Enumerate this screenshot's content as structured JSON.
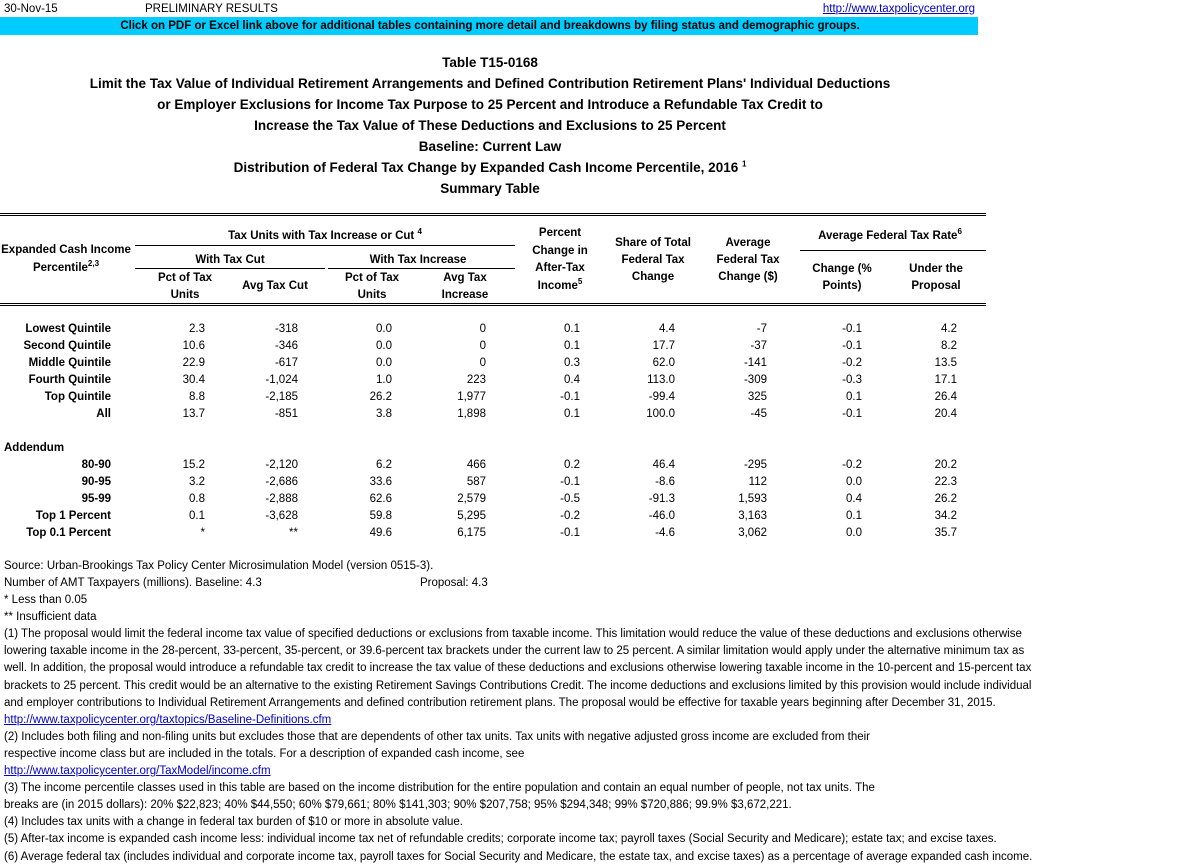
{
  "header": {
    "date": "30-Nov-15",
    "status": "PRELIMINARY RESULTS",
    "url": "http://www.taxpolicycenter.org",
    "banner": "Click on PDF or Excel link above for additional tables containing more detail and breakdowns by filing status and demographic groups."
  },
  "title_lines": [
    {
      "text": "Table T15-0168"
    },
    {
      "text": "Limit the Tax Value of Individual Retirement Arrangements and Defined Contribution Retirement Plans' Individual Deductions"
    },
    {
      "text": "or Employer Exclusions for Income Tax Purpose to 25 Percent and Introduce a Refundable Tax Credit to"
    },
    {
      "text": "Increase the Tax Value of These Deductions and Exclusions to 25 Percent"
    },
    {
      "text": "Baseline: Current Law"
    },
    {
      "text": "Distribution of Federal Tax Change by Expanded Cash Income Percentile, 2016 ",
      "sup": "1"
    },
    {
      "text": "Summary Table"
    }
  ],
  "table": {
    "stub": [
      {
        "text": "Expanded Cash Income"
      },
      {
        "text": "Percentile",
        "sup": "2,3"
      }
    ],
    "group": {
      "text": "Tax Units with Tax Increase or Cut ",
      "sup": "4"
    },
    "subgroups": [
      "With Tax Cut",
      "With Tax Increase"
    ],
    "rate_group": {
      "text": "Average Federal Tax Rate",
      "sup": "6"
    },
    "columns": [
      [
        {
          "text": "Pct of Tax"
        },
        {
          "text": "Units"
        }
      ],
      [
        {
          "text": "Avg Tax Cut"
        }
      ],
      [
        {
          "text": "Pct of Tax"
        },
        {
          "text": "Units"
        }
      ],
      [
        {
          "text": "Avg Tax"
        },
        {
          "text": "Increase"
        }
      ],
      [
        {
          "text": "Percent"
        },
        {
          "text": "Change in"
        },
        {
          "text": "After-Tax"
        },
        {
          "text": "Income",
          "sup": "5"
        }
      ],
      [
        {
          "text": "Share of Total"
        },
        {
          "text": "Federal Tax"
        },
        {
          "text": "Change"
        }
      ],
      [
        {
          "text": "Average"
        },
        {
          "text": "Federal Tax"
        },
        {
          "text": "Change ($)"
        }
      ],
      [
        {
          "text": "Change (%"
        },
        {
          "text": "Points)"
        }
      ],
      [
        {
          "text": "Under the"
        },
        {
          "text": "Proposal"
        }
      ]
    ],
    "rows": [
      {
        "label": "Lowest Quintile",
        "cells": [
          "2.3",
          "-318",
          "0.0",
          "0",
          "0.1",
          "4.4",
          "-7",
          "-0.1",
          "4.2"
        ]
      },
      {
        "label": "Second Quintile",
        "cells": [
          "10.6",
          "-346",
          "0.0",
          "0",
          "0.1",
          "17.7",
          "-37",
          "-0.1",
          "8.2"
        ]
      },
      {
        "label": "Middle Quintile",
        "cells": [
          "22.9",
          "-617",
          "0.0",
          "0",
          "0.3",
          "62.0",
          "-141",
          "-0.2",
          "13.5"
        ]
      },
      {
        "label": "Fourth Quintile",
        "cells": [
          "30.4",
          "-1,024",
          "1.0",
          "223",
          "0.4",
          "113.0",
          "-309",
          "-0.3",
          "17.1"
        ]
      },
      {
        "label": "Top Quintile",
        "cells": [
          "8.8",
          "-2,185",
          "26.2",
          "1,977",
          "-0.1",
          "-99.4",
          "325",
          "0.1",
          "26.4"
        ]
      },
      {
        "label": "All",
        "cells": [
          "13.7",
          "-851",
          "3.8",
          "1,898",
          "0.1",
          "100.0",
          "-45",
          "-0.1",
          "20.4"
        ]
      }
    ],
    "addendum_label": "Addendum",
    "addendum_rows": [
      {
        "label": "80-90",
        "cells": [
          "15.2",
          "-2,120",
          "6.2",
          "466",
          "0.2",
          "46.4",
          "-295",
          "-0.2",
          "20.2"
        ]
      },
      {
        "label": "90-95",
        "cells": [
          "3.2",
          "-2,686",
          "33.6",
          "587",
          "-0.1",
          "-8.6",
          "112",
          "0.0",
          "22.3"
        ]
      },
      {
        "label": "95-99",
        "cells": [
          "0.8",
          "-2,888",
          "62.6",
          "2,579",
          "-0.5",
          "-91.3",
          "1,593",
          "0.4",
          "26.2"
        ]
      },
      {
        "label": "Top 1 Percent",
        "cells": [
          "0.1",
          "-3,628",
          "59.8",
          "5,295",
          "-0.2",
          "-46.0",
          "3,163",
          "0.1",
          "34.2"
        ]
      },
      {
        "label": "Top 0.1 Percent",
        "cells": [
          "*",
          "**",
          "49.6",
          "6,175",
          "-0.1",
          "-4.6",
          "3,062",
          "0.0",
          "35.7"
        ]
      }
    ]
  },
  "notes": {
    "source": "Source: Urban-Brookings Tax Policy Center Microsimulation Model (version 0515-3).",
    "amt": "Number of AMT Taxpayers (millions).  Baseline: 4.3",
    "amt_proposal": "Proposal: 4.3",
    "lines": [
      {
        "text": "* Less than 0.05"
      },
      {
        "text": "** Insufficient data"
      },
      {
        "text": "(1) The proposal would limit the federal income tax value of specified deductions or exclusions from taxable income. This limitation would reduce the value of these deductions and exclusions otherwise"
      },
      {
        "text": "lowering taxable income in the 28-percent, 33-percent, 35-percent, or 39.6-percent tax brackets under the current law to 25 percent. A similar limitation would apply under the alternative minimum tax as"
      },
      {
        "text": "well. In addition, the proposal would introduce a refundable tax credit to increase the tax value of these deductions and exclusions otherwise lowering taxable income in the 10-percent and 15-percent tax"
      },
      {
        "text": "brackets to 25 percent. This credit would be an alternative to the existing Retirement Savings Contributions Credit. The income deductions and exclusions limited by this provision would include individual"
      },
      {
        "text": "and employer contributions to Individual Retirement Arrangements and defined contribution retirement plans. The proposal would be effective for taxable years beginning after December 31, 2015."
      },
      {
        "link": "http://www.taxpolicycenter.org/taxtopics/Baseline-Definitions.cfm"
      },
      {
        "text": "(2) Includes both filing and non-filing units but excludes those that are dependents of other tax units. Tax units with negative adjusted gross income are excluded from their"
      },
      {
        "text": "respective income class but are included in the totals. For a description of expanded cash income, see"
      },
      {
        "link": "http://www.taxpolicycenter.org/TaxModel/income.cfm"
      },
      {
        "text": "(3) The income percentile classes used in this table are based on the income distribution for the entire population and contain an equal number of people, not tax units. The"
      },
      {
        "text": "breaks are (in 2015 dollars): 20% $22,823; 40% $44,550; 60% $79,661; 80% $141,303; 90% $207,758; 95% $294,348; 99% $720,886; 99.9% $3,672,221."
      },
      {
        "text": "(4) Includes tax units with a change in federal tax burden of $10 or more in absolute value."
      },
      {
        "text": "(5) After-tax income is expanded cash income less: individual income tax net of refundable credits; corporate income tax; payroll taxes (Social Security and Medicare); estate tax; and excise taxes."
      },
      {
        "text": "(6) Average federal tax (includes individual and corporate income tax, payroll taxes for Social Security and Medicare, the estate tax, and excise taxes) as a percentage of average expanded cash income."
      }
    ]
  }
}
